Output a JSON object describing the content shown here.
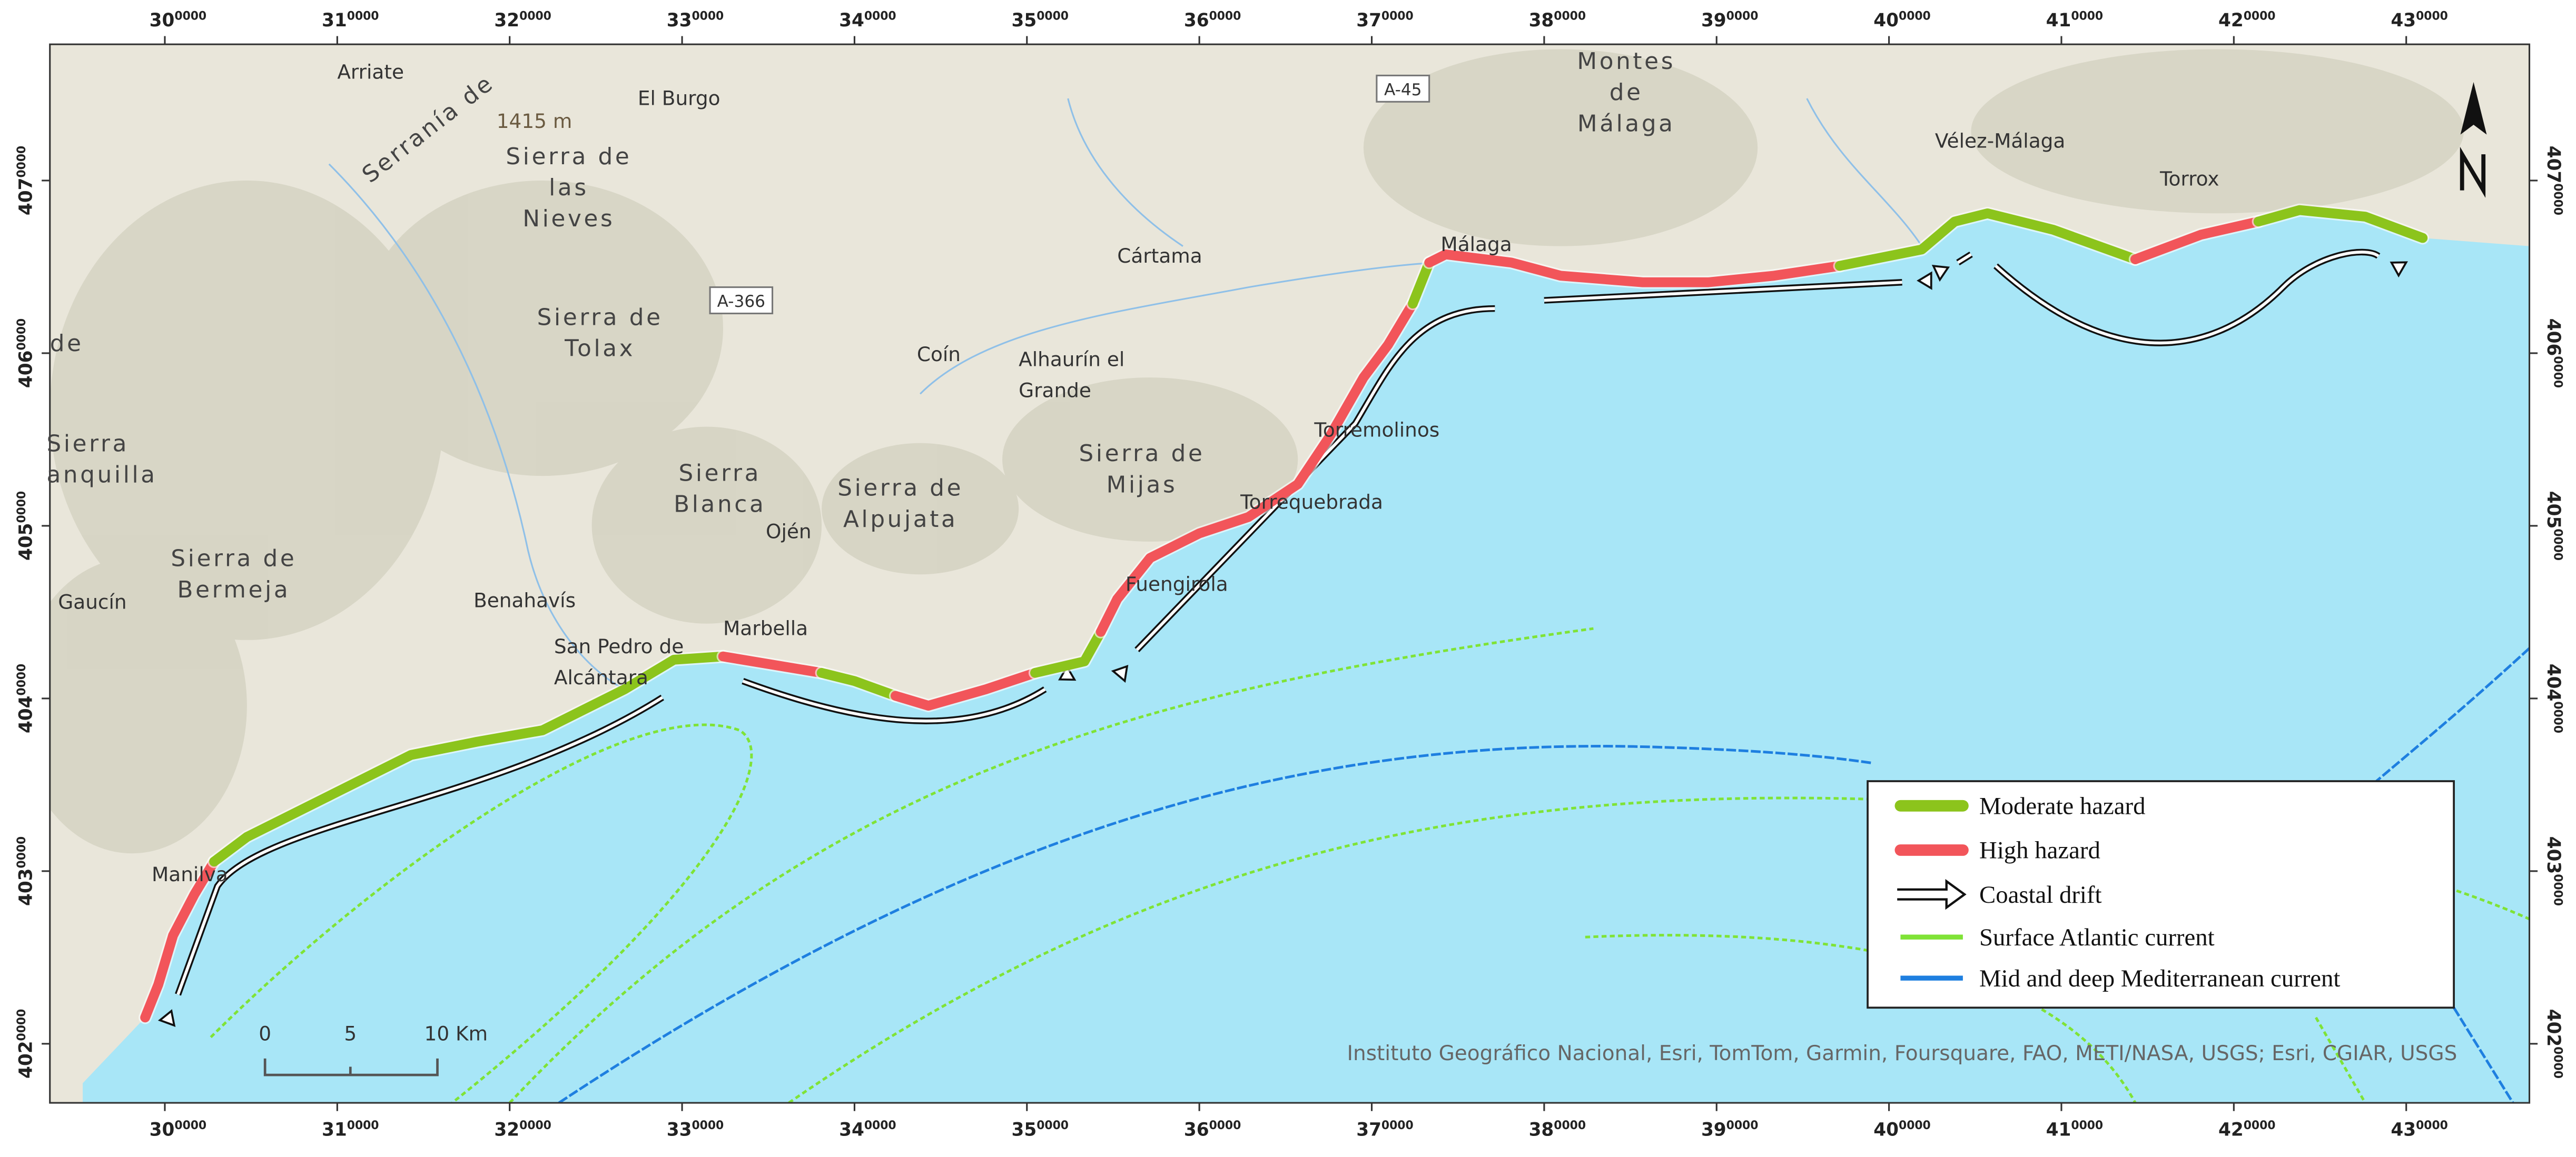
{
  "axes": {
    "x_ticks": [
      {
        "main": "30",
        "sup": "0000"
      },
      {
        "main": "31",
        "sup": "0000"
      },
      {
        "main": "32",
        "sup": "0000"
      },
      {
        "main": "33",
        "sup": "0000"
      },
      {
        "main": "34",
        "sup": "0000"
      },
      {
        "main": "35",
        "sup": "0000"
      },
      {
        "main": "36",
        "sup": "0000"
      },
      {
        "main": "37",
        "sup": "0000"
      },
      {
        "main": "38",
        "sup": "0000"
      },
      {
        "main": "39",
        "sup": "0000"
      },
      {
        "main": "40",
        "sup": "0000"
      },
      {
        "main": "41",
        "sup": "0000"
      },
      {
        "main": "42",
        "sup": "0000"
      },
      {
        "main": "43",
        "sup": "0000"
      }
    ],
    "y_ticks": [
      {
        "main": "407",
        "sup": "0000"
      },
      {
        "main": "406",
        "sup": "0000"
      },
      {
        "main": "405",
        "sup": "0000"
      },
      {
        "main": "404",
        "sup": "0000"
      },
      {
        "main": "403",
        "sup": "0000"
      },
      {
        "main": "402",
        "sup": "0000"
      }
    ]
  },
  "places": [
    {
      "lines": [
        "Arriate"
      ]
    },
    {
      "lines": [
        "El Burgo"
      ]
    },
    {
      "lines": [
        "Montes",
        "de",
        "Málaga"
      ]
    },
    {
      "lines": [
        "Vélez-Málaga"
      ]
    },
    {
      "lines": [
        "Torrox"
      ]
    },
    {
      "lines": [
        "Sierra de",
        "las",
        "Nieves"
      ]
    },
    {
      "lines": [
        "Cártama"
      ]
    },
    {
      "lines": [
        "Málaga"
      ]
    },
    {
      "lines": [
        "Coín"
      ]
    },
    {
      "lines": [
        "Alhaurín el",
        "Grande"
      ]
    },
    {
      "lines": [
        "Sierra de",
        "Tolax"
      ]
    },
    {
      "lines": [
        "Sierra de",
        "Mijas"
      ]
    },
    {
      "lines": [
        "Torremolinos"
      ]
    },
    {
      "lines": [
        "Sierra",
        "Blanca"
      ]
    },
    {
      "lines": [
        "Sierra de",
        "Alpujata"
      ]
    },
    {
      "lines": [
        "Ojén"
      ]
    },
    {
      "lines": [
        "Torrequebrada"
      ]
    },
    {
      "lines": [
        "Sierra de",
        "Bermeja"
      ]
    },
    {
      "lines": [
        "Fuengirola"
      ]
    },
    {
      "lines": [
        "Benahavís"
      ]
    },
    {
      "lines": [
        "Gaucín"
      ]
    },
    {
      "lines": [
        "Marbella"
      ]
    },
    {
      "lines": [
        "San Pedro de",
        "Alcántara"
      ]
    },
    {
      "lines": [
        "Manilva"
      ]
    },
    {
      "lines": [
        "Sierra",
        "anquilla"
      ]
    },
    {
      "lines": [
        "de"
      ]
    },
    {
      "lines": [
        "Serranía de"
      ]
    }
  ],
  "elevation": "1415 m",
  "roads": [
    "A-45",
    "A-366"
  ],
  "legend": [
    "Moderate hazard",
    "High hazard",
    "Coastal drift",
    "Surface Atlantic current",
    "Mid and deep Mediterranean current"
  ],
  "scale_bar": [
    "0",
    "5",
    "10 Km"
  ],
  "attribution": "Instituto Geográfico Nacional, Esri, TomTom, Garmin, Foursquare, FAO, METI/NASA, USGS; Esri, CGIAR, USGS"
}
